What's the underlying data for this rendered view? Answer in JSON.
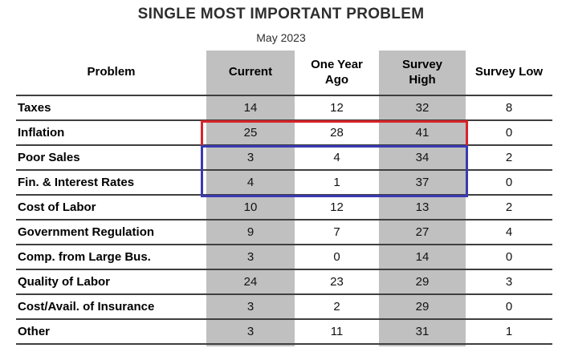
{
  "title": "SINGLE MOST IMPORTANT PROBLEM",
  "subtitle": "May 2023",
  "colors": {
    "shaded_column": "#c0c0c0",
    "highlight_red": "#d8232a",
    "highlight_blue": "#3a3ab2",
    "row_line": "#3f3f3f"
  },
  "chart_data": {
    "type": "table",
    "title": "SINGLE MOST IMPORTANT PROBLEM",
    "subtitle": "May 2023",
    "columns": [
      {
        "label": "Problem",
        "shaded": false
      },
      {
        "label": "Current",
        "shaded": true
      },
      {
        "label": "One Year\nAgo",
        "shaded": false
      },
      {
        "label": "Survey\nHigh",
        "shaded": true
      },
      {
        "label": "Survey Low",
        "shaded": false
      }
    ],
    "rows": [
      {
        "label": "Taxes",
        "values": [
          14,
          12,
          32,
          8
        ]
      },
      {
        "label": "Inflation",
        "values": [
          25,
          28,
          41,
          0
        ]
      },
      {
        "label": "Poor Sales",
        "values": [
          3,
          4,
          34,
          2
        ]
      },
      {
        "label": "Fin. & Interest Rates",
        "values": [
          4,
          1,
          37,
          0
        ]
      },
      {
        "label": "Cost of Labor",
        "values": [
          10,
          12,
          13,
          2
        ]
      },
      {
        "label": "Government Regulation",
        "values": [
          9,
          7,
          27,
          4
        ]
      },
      {
        "label": "Comp. from Large Bus.",
        "values": [
          3,
          0,
          14,
          0
        ]
      },
      {
        "label": "Quality of Labor",
        "values": [
          24,
          23,
          29,
          3
        ]
      },
      {
        "label": "Cost/Avail. of Insurance",
        "values": [
          3,
          2,
          29,
          0
        ]
      },
      {
        "label": "Other",
        "values": [
          3,
          11,
          31,
          1
        ]
      }
    ],
    "highlights": [
      {
        "name": "red-box",
        "color": "#d8232a",
        "rows": [
          "Inflation"
        ],
        "columns": [
          "Current",
          "One Year Ago",
          "Survey High"
        ]
      },
      {
        "name": "blue-box",
        "color": "#3a3ab2",
        "rows": [
          "Poor Sales",
          "Fin. & Interest Rates"
        ],
        "columns": [
          "Current",
          "One Year Ago",
          "Survey High"
        ]
      }
    ],
    "layout_hints": {
      "grid": "horizontal-rules-only",
      "shaded_column_color": "#c0c0c0"
    }
  }
}
